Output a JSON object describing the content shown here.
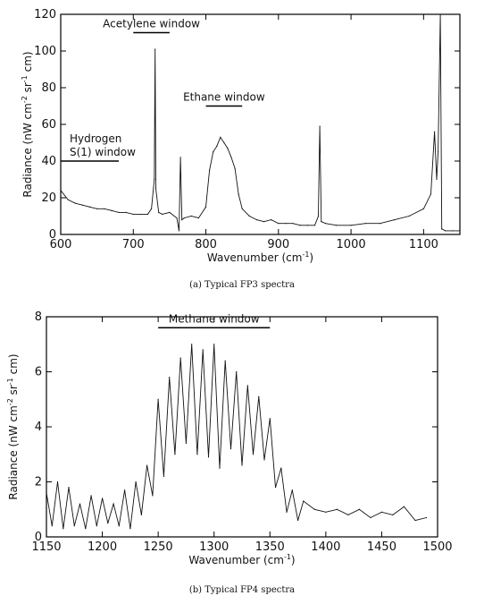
{
  "chart_data": [
    {
      "type": "line",
      "caption": "(a) Typical FP3 spectra",
      "xlabel": "Wavenumber (cm",
      "xlabel_sup": "-1",
      "xlabel_end": ")",
      "ylabel": "Radiance (nW cm",
      "ylabel_sup1": "-2",
      "ylabel_mid": " sr",
      "ylabel_sup2": "-1",
      "ylabel_end": " cm)",
      "xlim": [
        600,
        1150
      ],
      "ylim": [
        0,
        120
      ],
      "xticks": [
        600,
        700,
        800,
        900,
        1000,
        1100
      ],
      "yticks": [
        0,
        20,
        40,
        60,
        80,
        100,
        120
      ],
      "annotations": [
        {
          "lines": [
            "Acetylene window"
          ],
          "bar": [
            700,
            750
          ],
          "bar_y": 110
        },
        {
          "lines": [
            "Ethane window"
          ],
          "bar": [
            800,
            850
          ],
          "bar_y": 70
        },
        {
          "lines": [
            "Hydrogen",
            "S(1) window"
          ],
          "bar": [
            600,
            680
          ],
          "bar_y": 40
        }
      ],
      "series": [
        {
          "x": [
            600,
            610,
            620,
            630,
            640,
            650,
            660,
            670,
            680,
            690,
            700,
            710,
            720,
            725,
            729,
            730,
            731,
            735,
            740,
            750,
            760,
            763,
            765,
            767,
            770,
            780,
            790,
            800,
            805,
            810,
            815,
            820,
            825,
            830,
            835,
            840,
            845,
            850,
            860,
            870,
            880,
            890,
            900,
            910,
            920,
            930,
            940,
            950,
            955,
            957,
            959,
            965,
            980,
            1000,
            1020,
            1040,
            1060,
            1080,
            1100,
            1110,
            1115,
            1118,
            1120,
            1123,
            1125,
            1130,
            1140,
            1150
          ],
          "y": [
            24,
            19,
            17,
            16,
            15,
            14,
            14,
            13,
            12,
            12,
            11,
            11,
            11,
            14,
            30,
            101,
            25,
            12,
            11,
            12,
            9,
            2,
            42,
            8,
            9,
            10,
            9,
            15,
            35,
            45,
            48,
            53,
            50,
            47,
            42,
            36,
            22,
            14,
            10,
            8,
            7,
            8,
            6,
            6,
            6,
            5,
            5,
            5,
            10,
            59,
            7,
            6,
            5,
            5,
            6,
            6,
            8,
            10,
            14,
            22,
            56,
            30,
            45,
            120,
            3,
            2,
            2,
            2
          ]
        }
      ]
    },
    {
      "type": "line",
      "caption": "(b) Typical FP4 spectra",
      "xlabel": "Wavenumber (cm",
      "xlabel_sup": "-1",
      "xlabel_end": ")",
      "ylabel": "Radiance (nW cm",
      "ylabel_sup1": "-2",
      "ylabel_mid": " sr",
      "ylabel_sup2": "-1",
      "ylabel_end": " cm)",
      "xlim": [
        1150,
        1500
      ],
      "ylim": [
        0,
        8
      ],
      "xticks": [
        1150,
        1200,
        1250,
        1300,
        1350,
        1400,
        1450,
        1500
      ],
      "yticks": [
        0,
        2,
        4,
        6,
        8
      ],
      "annotations": [
        {
          "lines": [
            "Methane window"
          ],
          "bar": [
            1250,
            1350
          ],
          "bar_y": 7.6
        }
      ],
      "series": [
        {
          "x": [
            1150,
            1155,
            1160,
            1165,
            1170,
            1175,
            1180,
            1185,
            1190,
            1195,
            1200,
            1205,
            1210,
            1215,
            1220,
            1225,
            1230,
            1235,
            1240,
            1245,
            1250,
            1255,
            1260,
            1265,
            1270,
            1275,
            1280,
            1285,
            1290,
            1295,
            1300,
            1305,
            1310,
            1315,
            1320,
            1325,
            1330,
            1335,
            1340,
            1345,
            1350,
            1355,
            1360,
            1365,
            1370,
            1375,
            1380,
            1390,
            1400,
            1410,
            1420,
            1430,
            1440,
            1450,
            1460,
            1470,
            1480,
            1490
          ],
          "y": [
            1.6,
            0.4,
            2.0,
            0.3,
            1.8,
            0.4,
            1.2,
            0.3,
            1.5,
            0.4,
            1.4,
            0.5,
            1.2,
            0.4,
            1.7,
            0.3,
            2.0,
            0.8,
            2.6,
            1.5,
            5.0,
            2.2,
            5.8,
            3.0,
            6.5,
            3.4,
            7.0,
            3.0,
            6.8,
            2.9,
            7.0,
            2.5,
            6.4,
            3.2,
            6.0,
            2.6,
            5.5,
            3.0,
            5.1,
            2.8,
            4.3,
            1.8,
            2.5,
            0.9,
            1.7,
            0.6,
            1.3,
            1.0,
            0.9,
            1.0,
            0.8,
            1.0,
            0.7,
            0.9,
            0.8,
            1.1,
            0.6,
            0.7
          ]
        }
      ]
    }
  ]
}
